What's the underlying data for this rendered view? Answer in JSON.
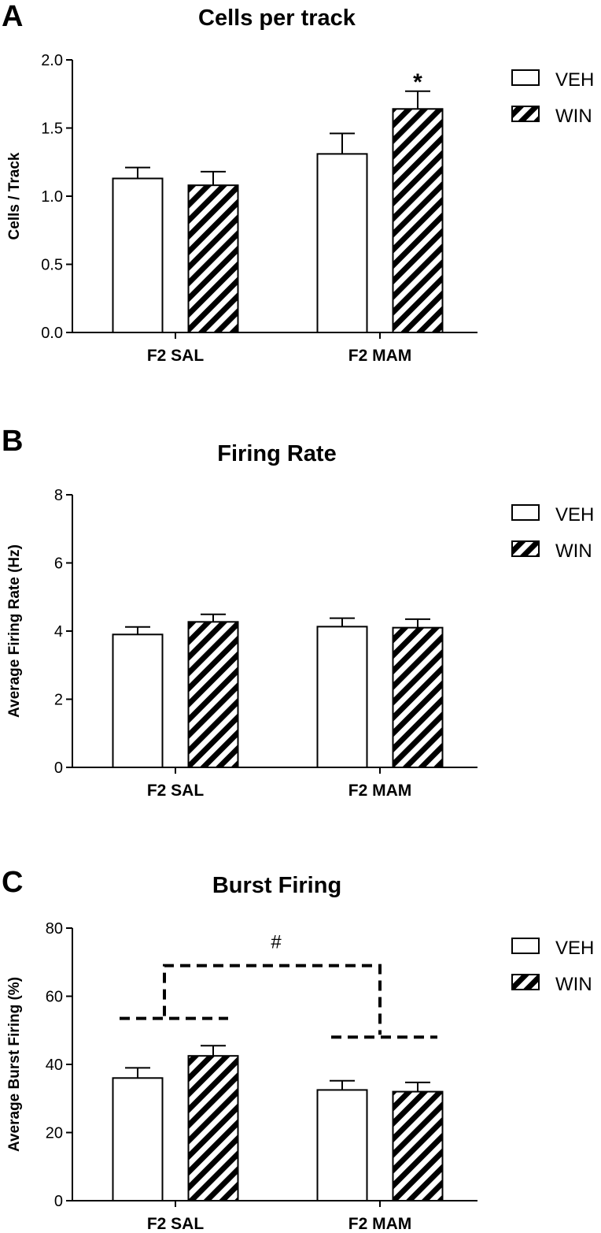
{
  "chart_data": [
    {
      "type": "bar",
      "panel": "A",
      "title": "Cells per track",
      "ylabel": "Cells / Track",
      "xlabel": "",
      "categories": [
        "F2 SAL",
        "F2 MAM"
      ],
      "ylim": [
        0,
        2.0
      ],
      "yticks": [
        "0.0",
        "0.5",
        "1.0",
        "1.5",
        "2.0"
      ],
      "series": [
        {
          "name": "VEH",
          "pattern": "open",
          "values": [
            1.13,
            1.31
          ],
          "errors": [
            0.08,
            0.15
          ]
        },
        {
          "name": "WIN",
          "pattern": "hatched",
          "values": [
            1.08,
            1.64
          ],
          "errors": [
            0.1,
            0.13
          ]
        }
      ],
      "annotations": [
        {
          "text": "*",
          "category": "F2 MAM",
          "series": "WIN"
        }
      ],
      "legend": {
        "position": "right",
        "entries": [
          "VEH",
          "WIN"
        ]
      }
    },
    {
      "type": "bar",
      "panel": "B",
      "title": "Firing Rate",
      "ylabel": "Average Firing Rate (Hz)",
      "xlabel": "",
      "categories": [
        "F2 SAL",
        "F2 MAM"
      ],
      "ylim": [
        0,
        8
      ],
      "yticks": [
        "0",
        "2",
        "4",
        "6",
        "8"
      ],
      "series": [
        {
          "name": "VEH",
          "pattern": "open",
          "values": [
            3.9,
            4.13
          ],
          "errors": [
            0.22,
            0.25
          ]
        },
        {
          "name": "WIN",
          "pattern": "hatched",
          "values": [
            4.27,
            4.1
          ],
          "errors": [
            0.22,
            0.25
          ]
        }
      ],
      "annotations": [],
      "legend": {
        "position": "right",
        "entries": [
          "VEH",
          "WIN"
        ]
      }
    },
    {
      "type": "bar",
      "panel": "C",
      "title": "Burst Firing",
      "ylabel": "Average Burst Firing (%)",
      "xlabel": "",
      "categories": [
        "F2 SAL",
        "F2 MAM"
      ],
      "ylim": [
        0,
        80
      ],
      "yticks": [
        "0",
        "20",
        "40",
        "60",
        "80"
      ],
      "series": [
        {
          "name": "VEH",
          "pattern": "open",
          "values": [
            36,
            32.5
          ],
          "errors": [
            3,
            2.7
          ]
        },
        {
          "name": "WIN",
          "pattern": "hatched",
          "values": [
            42.5,
            32
          ],
          "errors": [
            3,
            2.7
          ]
        }
      ],
      "annotations": [
        {
          "text": "#",
          "type": "comparison-bracket",
          "between": [
            "F2 SAL",
            "F2 MAM"
          ],
          "group_means": [
            53.5,
            48
          ],
          "bracket_level": 69
        }
      ],
      "legend": {
        "position": "right",
        "entries": [
          "VEH",
          "WIN"
        ]
      }
    }
  ],
  "colors": {
    "bar_fill": "#ffffff",
    "ink": "#000000"
  }
}
